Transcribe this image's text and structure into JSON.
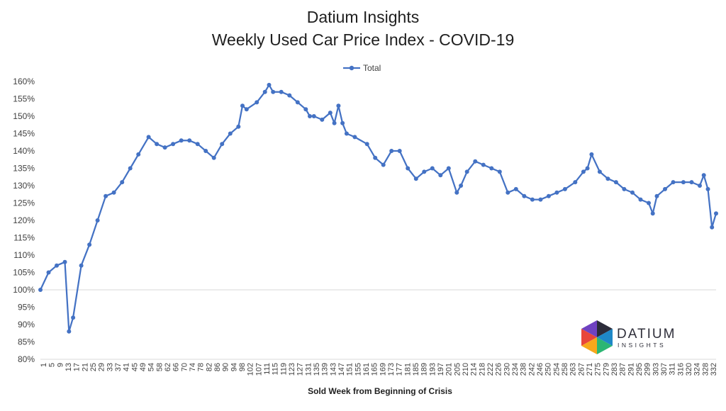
{
  "chart_data": {
    "type": "line",
    "title": "Datium Insights",
    "subtitle": "Weekly Used Car Price Index - COVID-19",
    "xlabel": "Sold Week from Beginning of Crisis",
    "ylabel": "",
    "ylim": [
      0.8,
      1.6
    ],
    "ytick_values": [
      0.8,
      0.85,
      0.9,
      0.95,
      1.0,
      1.05,
      1.1,
      1.15,
      1.2,
      1.25,
      1.3,
      1.35,
      1.4,
      1.45,
      1.5,
      1.55,
      1.6
    ],
    "ytick_labels": [
      "80%",
      "85%",
      "90%",
      "95%",
      "100%",
      "105%",
      "110%",
      "115%",
      "120%",
      "125%",
      "130%",
      "135%",
      "140%",
      "145%",
      "150%",
      "155%",
      "160%"
    ],
    "xtick_labels": [
      "1",
      "5",
      "9",
      "13",
      "17",
      "21",
      "25",
      "29",
      "33",
      "37",
      "41",
      "45",
      "49",
      "54",
      "58",
      "62",
      "66",
      "70",
      "74",
      "78",
      "82",
      "86",
      "90",
      "94",
      "98",
      "102",
      "107",
      "111",
      "115",
      "119",
      "123",
      "127",
      "131",
      "135",
      "139",
      "143",
      "147",
      "151",
      "155",
      "161",
      "165",
      "169",
      "173",
      "177",
      "181",
      "185",
      "189",
      "193",
      "197",
      "201",
      "205",
      "210",
      "214",
      "218",
      "222",
      "226",
      "230",
      "234",
      "238",
      "242",
      "246",
      "250",
      "254",
      "258",
      "263",
      "267",
      "271",
      "275",
      "279",
      "283",
      "287",
      "291",
      "295",
      "299",
      "303",
      "307",
      "311",
      "316",
      "320",
      "324",
      "328",
      "332"
    ],
    "grid": false,
    "legend_position": "top",
    "reference_line": 1.0,
    "series": [
      {
        "name": "Total",
        "color": "#4472C4",
        "x": [
          1,
          5,
          9,
          13,
          15,
          17,
          21,
          25,
          29,
          33,
          37,
          41,
          45,
          49,
          54,
          58,
          62,
          66,
          70,
          74,
          78,
          82,
          86,
          90,
          94,
          98,
          100,
          102,
          107,
          111,
          113,
          115,
          119,
          123,
          127,
          131,
          133,
          135,
          139,
          143,
          145,
          147,
          149,
          151,
          155,
          161,
          165,
          169,
          173,
          177,
          181,
          185,
          189,
          193,
          197,
          201,
          205,
          207,
          210,
          214,
          218,
          222,
          226,
          230,
          234,
          238,
          242,
          246,
          250,
          254,
          258,
          263,
          267,
          269,
          271,
          275,
          279,
          283,
          287,
          291,
          295,
          299,
          301,
          303,
          307,
          311,
          316,
          320,
          324,
          326,
          328,
          330,
          332
        ],
        "values": [
          1.0,
          1.05,
          1.07,
          1.08,
          0.88,
          0.92,
          1.07,
          1.13,
          1.2,
          1.27,
          1.28,
          1.31,
          1.35,
          1.39,
          1.44,
          1.42,
          1.41,
          1.42,
          1.43,
          1.43,
          1.42,
          1.4,
          1.38,
          1.42,
          1.45,
          1.47,
          1.53,
          1.52,
          1.54,
          1.57,
          1.59,
          1.57,
          1.57,
          1.56,
          1.54,
          1.52,
          1.5,
          1.5,
          1.49,
          1.51,
          1.48,
          1.53,
          1.48,
          1.45,
          1.44,
          1.42,
          1.38,
          1.36,
          1.4,
          1.4,
          1.35,
          1.32,
          1.34,
          1.35,
          1.33,
          1.35,
          1.28,
          1.3,
          1.34,
          1.37,
          1.36,
          1.35,
          1.34,
          1.28,
          1.29,
          1.27,
          1.26,
          1.26,
          1.27,
          1.28,
          1.29,
          1.31,
          1.34,
          1.35,
          1.39,
          1.34,
          1.32,
          1.31,
          1.29,
          1.28,
          1.26,
          1.25,
          1.22,
          1.27,
          1.29,
          1.31,
          1.31,
          1.31,
          1.3,
          1.33,
          1.29,
          1.18,
          1.22
        ]
      }
    ]
  },
  "logo": {
    "name": "DATIUM",
    "tagline": "INSIGHTS",
    "colors": [
      "#e8463a",
      "#f7a81b",
      "#2bb673",
      "#1e88c7",
      "#6f42c1",
      "#2c2c3a"
    ]
  }
}
